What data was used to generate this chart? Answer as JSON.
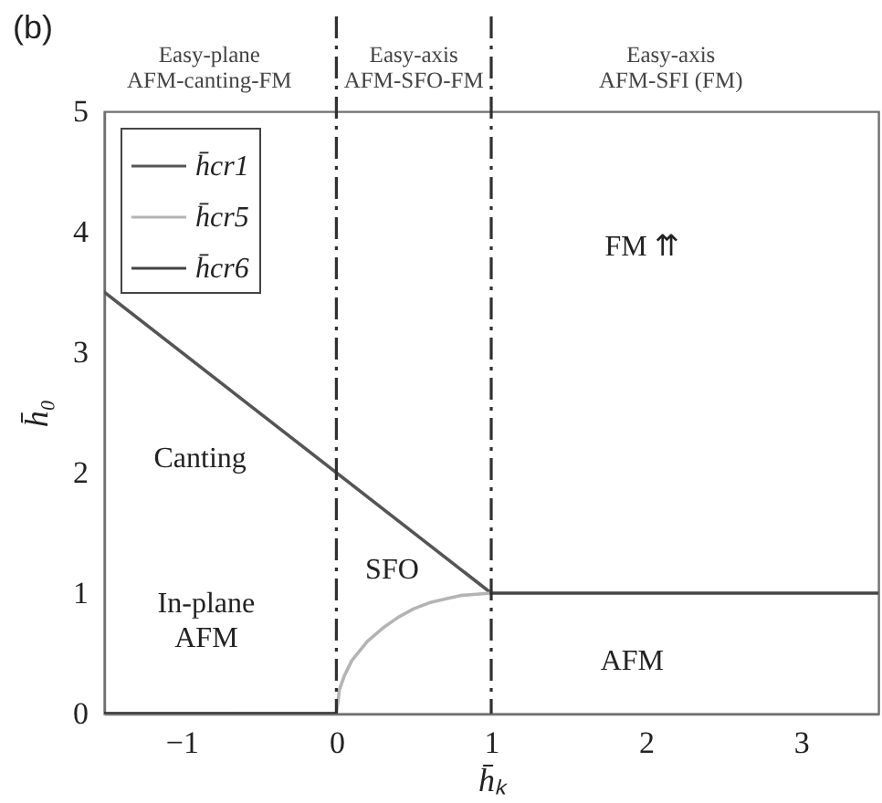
{
  "chart_data": {
    "type": "line",
    "title": "(b)",
    "xlabel": "h̄ₖ",
    "ylabel": "h̄₀",
    "xlim": [
      -1.5,
      3.5
    ],
    "ylim": [
      0,
      5
    ],
    "xticks": [
      -1,
      0,
      1,
      2,
      3
    ],
    "yticks": [
      0,
      1,
      2,
      3,
      4,
      5
    ],
    "grid": false,
    "legend": "top left",
    "series": [
      {
        "name": "h̄cr1",
        "color": "#555555",
        "x": [
          -1.5,
          1
        ],
        "values": [
          3.5,
          1
        ]
      },
      {
        "name": "h̄cr5",
        "color": "#b4b4b4",
        "x": [
          0,
          0.02,
          0.05,
          0.1,
          0.2,
          0.3,
          0.4,
          0.5,
          0.6,
          0.7,
          0.8,
          0.9,
          1
        ],
        "values": [
          0,
          0.2,
          0.31,
          0.44,
          0.6,
          0.71,
          0.8,
          0.87,
          0.92,
          0.95,
          0.98,
          0.99,
          1
        ]
      },
      {
        "name": "h̄cr6",
        "color": "#444444",
        "x": [
          1,
          3.5
        ],
        "values": [
          1,
          1
        ]
      },
      {
        "color": "#2a2a2a",
        "x": [
          -1.5,
          0
        ],
        "values": [
          0,
          0
        ]
      }
    ],
    "ref_lines": [
      {
        "axis": "x",
        "value": 0,
        "color": "#303030",
        "line_style": "dashdot"
      },
      {
        "axis": "x",
        "value": 1,
        "color": "#303030",
        "line_style": "dashdot"
      }
    ],
    "annotations": [
      "Easy-plane\nAFM-canting-FM",
      "Easy-axis\nAFM-SFO-FM",
      "Easy-axis\nAFM-SFI (FM)",
      "FM ⇈",
      "Canting",
      "SFO",
      "AFM",
      "In-plane\nAFM"
    ]
  }
}
